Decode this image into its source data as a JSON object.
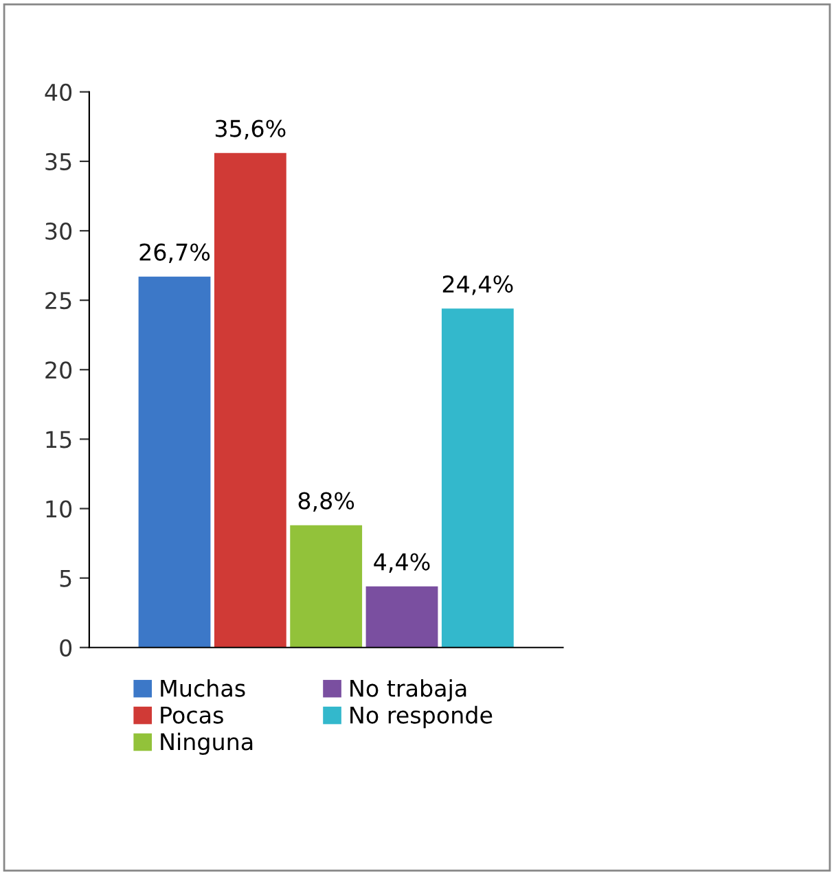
{
  "chart_data": {
    "type": "bar",
    "categories": [
      null
    ],
    "series": [
      {
        "name": "Muchas",
        "color": "#3c78c8",
        "values": [
          26.7
        ],
        "value_labels": [
          "26,7%"
        ]
      },
      {
        "name": "Pocas",
        "color": "#d03a36",
        "values": [
          35.6
        ],
        "value_labels": [
          "35,6%"
        ]
      },
      {
        "name": "Ninguna",
        "color": "#92c23a",
        "values": [
          8.8
        ],
        "value_labels": [
          "8,8%"
        ]
      },
      {
        "name": "No trabaja",
        "color": "#7a4fa0",
        "values": [
          4.4
        ],
        "value_labels": [
          "4,4%"
        ]
      },
      {
        "name": "No responde",
        "color": "#33b8cc",
        "values": [
          24.4
        ],
        "value_labels": [
          "24,4%"
        ]
      }
    ],
    "ylim": [
      0,
      40
    ],
    "yticks": [
      0,
      5,
      10,
      15,
      20,
      25,
      30,
      35,
      40
    ],
    "grid": false,
    "legend": "bottom"
  }
}
